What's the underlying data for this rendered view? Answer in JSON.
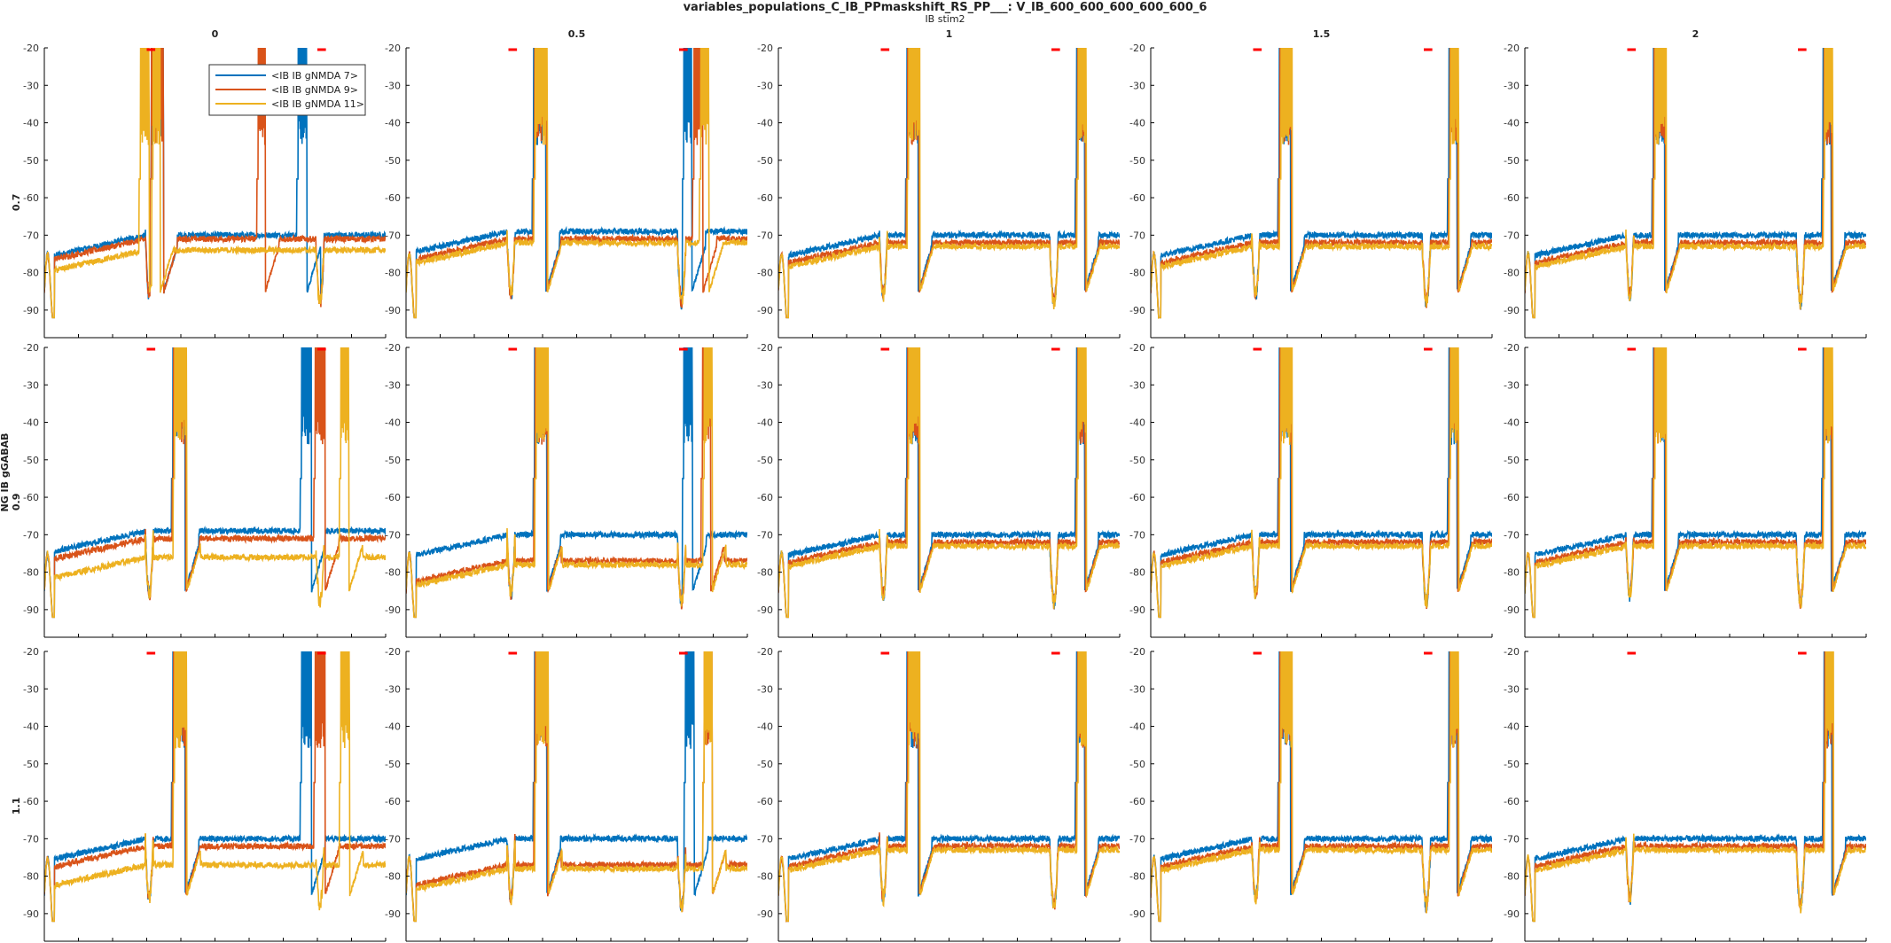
{
  "figure": {
    "title": "variables_populations_C_IB_PPmaskshift_RS_PP___: V_IB_600_600_600_600_600_6",
    "col_variable": "IB stim2",
    "row_variable": "NG IB gGABAB",
    "col_values": [
      "0",
      "0.5",
      "1",
      "1.5",
      "2"
    ],
    "row_values": [
      "0.7",
      "0.9",
      "1.1"
    ]
  },
  "legend": {
    "placement": "inside top of first panel",
    "entries": [
      "<IB IB gNMDA 7>",
      "<IB IB gNMDA 9>",
      "<IB IB gNMDA 11>"
    ]
  },
  "colors": {
    "series": [
      "#0072BD",
      "#D95319",
      "#EDB120"
    ],
    "stimulus_marker": "#FF0000",
    "axis": "#000000"
  },
  "chart_data": {
    "type": "line",
    "description_units": "membrane voltage (mV) vs time (ms)",
    "xlim": [
      0,
      2000
    ],
    "ylim": [
      -95,
      -20
    ],
    "xticks": [
      0,
      200,
      400,
      600,
      800,
      1000,
      1200,
      1400,
      1600,
      1800,
      2000
    ],
    "yticks": [
      -20,
      -30,
      -40,
      -50,
      -60,
      -70,
      -80,
      -90
    ],
    "stimulus_windows": [
      [
        600,
        650
      ],
      [
        1600,
        1650
      ]
    ],
    "series_names": [
      "<IB IB gNMDA 7>",
      "<IB IB gNMDA 9>",
      "<IB IB gNMDA 11>"
    ],
    "panels": [
      {
        "row": "0.7",
        "col": "0",
        "events": [
          [
            [
              620,
              80
            ],
            [
              1480,
              60
            ]
          ],
          [
            [
              620,
              80
            ],
            [
              1245,
              50
            ]
          ],
          [
            [
              555,
              60
            ],
            [
              630,
              50
            ]
          ]
        ],
        "rest": [
          -72,
          -73,
          -76
        ]
      },
      {
        "row": "0.7",
        "col": "0.5",
        "events": [
          [
            [
              740,
              80
            ],
            [
              1620,
              55
            ]
          ],
          [
            [
              745,
              80
            ],
            [
              1680,
              60
            ]
          ],
          [
            [
              750,
              80
            ],
            [
              1720,
              55
            ]
          ]
        ],
        "rest": [
          -71,
          -73,
          -74
        ]
      },
      {
        "row": "0.7",
        "col": "1",
        "events": [
          [
            [
              745,
              75
            ],
            [
              1740,
              55
            ]
          ],
          [
            [
              750,
              75
            ],
            [
              1745,
              55
            ]
          ],
          [
            [
              755,
              75
            ],
            [
              1750,
              55
            ]
          ]
        ],
        "rest": [
          -72,
          -74,
          -75
        ]
      },
      {
        "row": "0.7",
        "col": "1.5",
        "events": [
          [
            [
              745,
              75
            ],
            [
              1740,
              55
            ]
          ],
          [
            [
              750,
              75
            ],
            [
              1745,
              55
            ]
          ],
          [
            [
              755,
              75
            ],
            [
              1750,
              55
            ]
          ]
        ],
        "rest": [
          -72,
          -74,
          -75
        ]
      },
      {
        "row": "0.7",
        "col": "2",
        "events": [
          [
            [
              745,
              75
            ],
            [
              1740,
              55
            ]
          ],
          [
            [
              750,
              75
            ],
            [
              1745,
              55
            ]
          ],
          [
            [
              755,
              75
            ],
            [
              1750,
              55
            ]
          ]
        ],
        "rest": [
          -72,
          -74,
          -75
        ]
      },
      {
        "row": "0.9",
        "col": "0",
        "events": [
          [
            [
              745,
              80
            ],
            [
              1500,
              65
            ]
          ],
          [
            [
              750,
              80
            ],
            [
              1580,
              65
            ]
          ],
          [
            [
              755,
              80
            ],
            [
              1730,
              55
            ]
          ]
        ],
        "rest": [
          -71,
          -73,
          -78
        ]
      },
      {
        "row": "0.9",
        "col": "0.5",
        "events": [
          [
            [
              745,
              80
            ],
            [
              1620,
              60
            ]
          ],
          [
            [
              750,
              80
            ],
            [
              1730,
              55
            ]
          ],
          [
            [
              755,
              80
            ],
            [
              1740,
              55
            ]
          ]
        ],
        "rest": [
          -72,
          -79,
          -80
        ]
      },
      {
        "row": "0.9",
        "col": "1",
        "events": [
          [
            [
              745,
              75
            ],
            [
              1740,
              55
            ]
          ],
          [
            [
              750,
              75
            ],
            [
              1745,
              55
            ]
          ],
          [
            [
              755,
              75
            ],
            [
              1750,
              55
            ]
          ]
        ],
        "rest": [
          -72,
          -74,
          -75
        ]
      },
      {
        "row": "0.9",
        "col": "1.5",
        "events": [
          [
            [
              745,
              75
            ],
            [
              1740,
              55
            ]
          ],
          [
            [
              750,
              75
            ],
            [
              1745,
              55
            ]
          ],
          [
            [
              755,
              75
            ],
            [
              1750,
              55
            ]
          ]
        ],
        "rest": [
          -72,
          -74,
          -75
        ]
      },
      {
        "row": "0.9",
        "col": "2",
        "events": [
          [
            [
              745,
              75
            ],
            [
              1740,
              55
            ]
          ],
          [
            [
              750,
              75
            ],
            [
              1745,
              55
            ]
          ],
          [
            [
              755,
              75
            ],
            [
              1750,
              55
            ]
          ]
        ],
        "rest": [
          -72,
          -74,
          -75
        ]
      },
      {
        "row": "1.1",
        "col": "0",
        "events": [
          [
            [
              745,
              80
            ],
            [
              1500,
              65
            ]
          ],
          [
            [
              750,
              80
            ],
            [
              1580,
              65
            ]
          ],
          [
            [
              755,
              80
            ],
            [
              1730,
              60
            ]
          ]
        ],
        "rest": [
          -72,
          -74,
          -79
        ]
      },
      {
        "row": "1.1",
        "col": "0.5",
        "events": [
          [
            [
              745,
              80
            ],
            [
              1630,
              60
            ]
          ],
          [
            [
              750,
              80
            ],
            [
              1740,
              55
            ]
          ],
          [
            [
              755,
              80
            ],
            [
              1740,
              55
            ]
          ]
        ],
        "rest": [
          -72,
          -79,
          -80
        ]
      },
      {
        "row": "1.1",
        "col": "1",
        "events": [
          [
            [
              745,
              75
            ],
            [
              1740,
              55
            ]
          ],
          [
            [
              750,
              75
            ],
            [
              1745,
              55
            ]
          ],
          [
            [
              755,
              75
            ],
            [
              1750,
              55
            ]
          ]
        ],
        "rest": [
          -72,
          -74,
          -75
        ]
      },
      {
        "row": "1.1",
        "col": "1.5",
        "events": [
          [
            [
              745,
              75
            ],
            [
              1740,
              55
            ]
          ],
          [
            [
              750,
              75
            ],
            [
              1745,
              55
            ]
          ],
          [
            [
              755,
              75
            ],
            [
              1750,
              55
            ]
          ]
        ],
        "rest": [
          -72,
          -74,
          -75
        ]
      },
      {
        "row": "1.1",
        "col": "2",
        "events": [
          [
            [
              1745,
              55
            ]
          ],
          [
            [
              1750,
              55
            ]
          ],
          [
            [
              1755,
              55
            ]
          ]
        ],
        "rest": [
          -72,
          -74,
          -75
        ]
      }
    ]
  }
}
